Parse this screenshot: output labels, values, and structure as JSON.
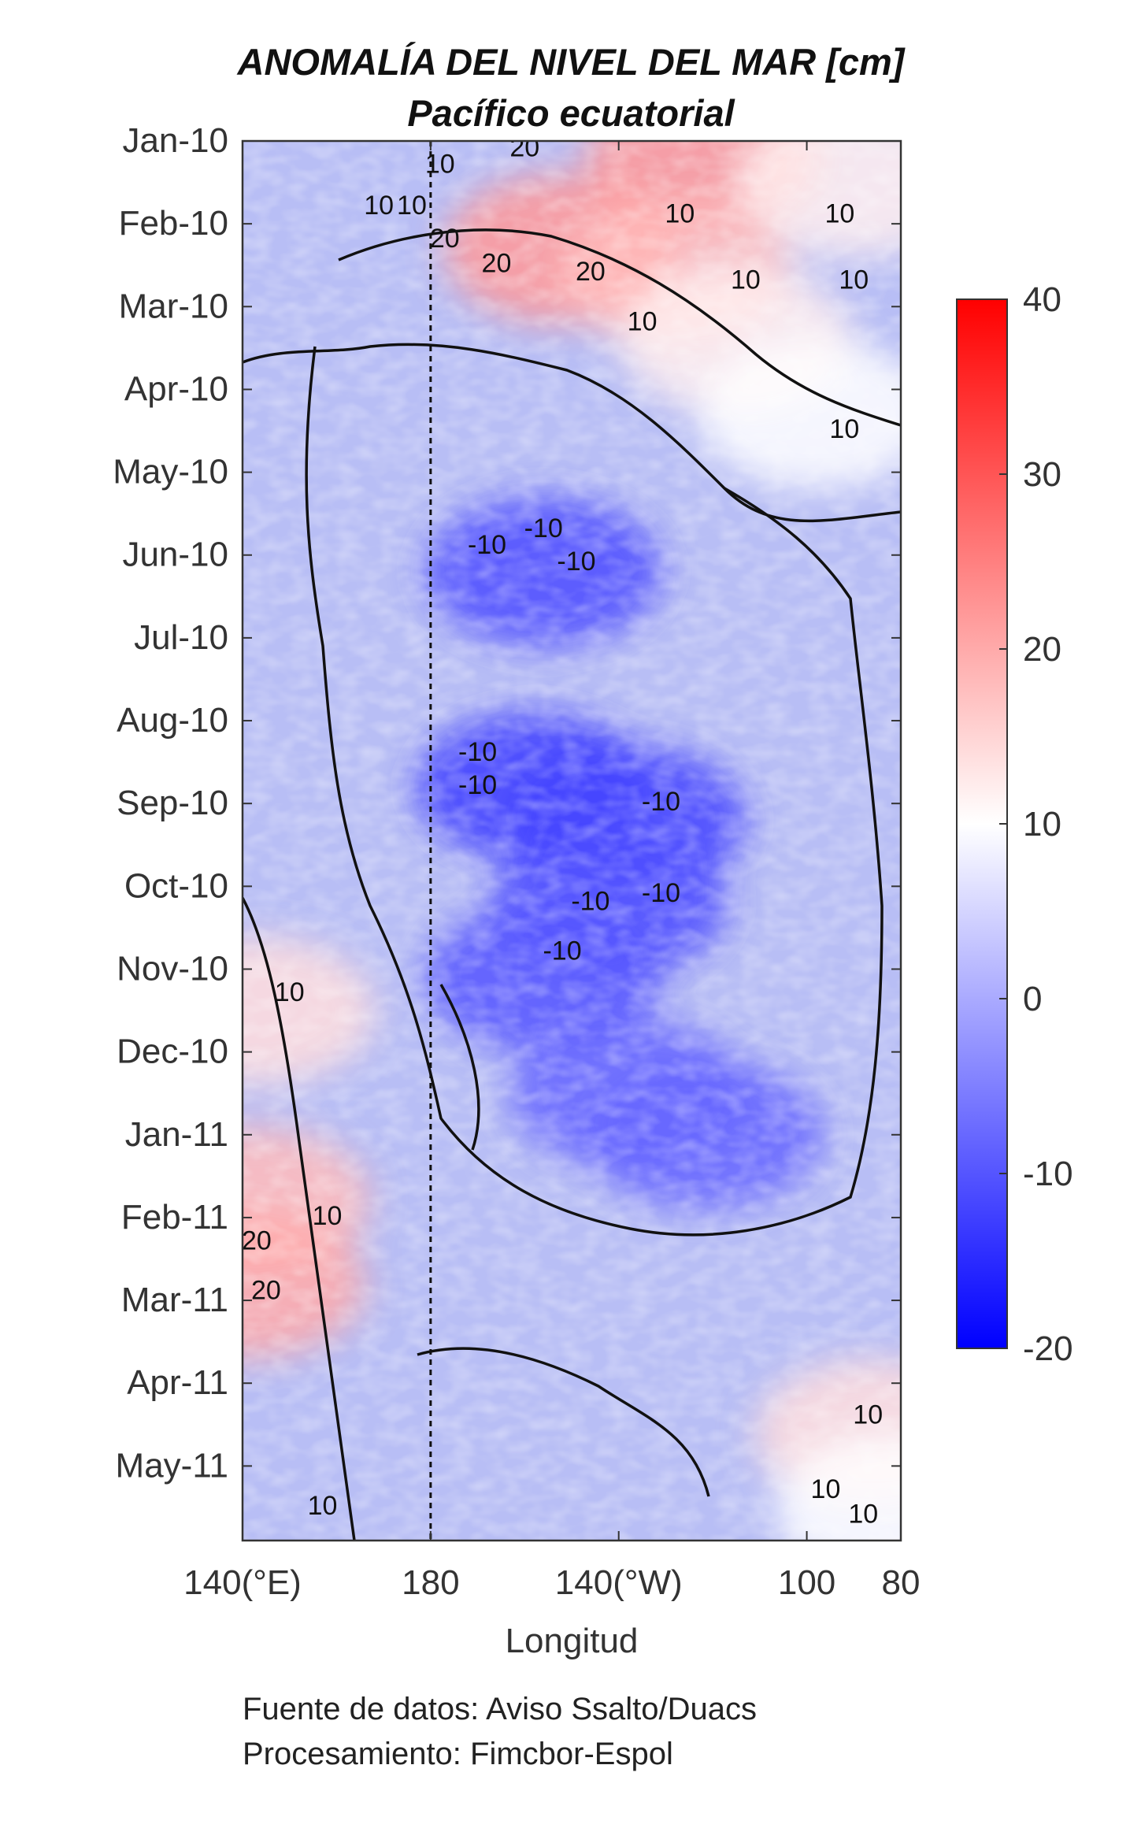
{
  "chart_data": {
    "type": "heatmap",
    "title": "ANOMALÍA DEL NIVEL DEL MAR [cm]",
    "subtitle": "Pacífico ecuatorial",
    "xlabel": "Longitud",
    "ylabel": "",
    "x_ticks": [
      {
        "value": 140,
        "label": "140(°E)"
      },
      {
        "value": 180,
        "label": "180"
      },
      {
        "value": 220,
        "label": "140(°W)"
      },
      {
        "value": 260,
        "label": "100"
      },
      {
        "value": 280,
        "label": "80"
      }
    ],
    "xlim": [
      140,
      280
    ],
    "y_ticks": [
      "Jan-10",
      "Feb-10",
      "Mar-10",
      "Apr-10",
      "May-10",
      "Jun-10",
      "Jul-10",
      "Aug-10",
      "Sep-10",
      "Oct-10",
      "Nov-10",
      "Dec-10",
      "Jan-11",
      "Feb-11",
      "Mar-11",
      "Apr-11",
      "May-11"
    ],
    "ylim_months": [
      0,
      16.9
    ],
    "dateline_lon": 180,
    "colorbar": {
      "min": -20,
      "max": 40,
      "ticks": [
        40,
        30,
        20,
        10,
        0,
        -10,
        -20
      ],
      "colors": [
        "#0000ff",
        "#ffffff",
        "#ff0000"
      ],
      "white_at": 10
    },
    "field_anomalies": [
      {
        "month": 0.2,
        "lon": 238,
        "value": 22
      },
      {
        "month": 0.5,
        "lon": 270,
        "value": 12
      },
      {
        "month": 1.3,
        "lon": 208,
        "value": 22
      },
      {
        "month": 1.6,
        "lon": 232,
        "value": 18
      },
      {
        "month": 2.4,
        "lon": 245,
        "value": 12
      },
      {
        "month": 3.3,
        "lon": 262,
        "value": 10
      },
      {
        "month": 5.2,
        "lon": 204,
        "value": -11
      },
      {
        "month": 7.8,
        "lon": 202,
        "value": -13
      },
      {
        "month": 8.2,
        "lon": 222,
        "value": -12
      },
      {
        "month": 9.2,
        "lon": 218,
        "value": -11
      },
      {
        "month": 10.1,
        "lon": 204,
        "value": -10
      },
      {
        "month": 11.5,
        "lon": 222,
        "value": -8
      },
      {
        "month": 12.0,
        "lon": 238,
        "value": -8
      },
      {
        "month": 10.5,
        "lon": 143,
        "value": 14
      },
      {
        "month": 12.8,
        "lon": 142,
        "value": 18
      },
      {
        "month": 13.8,
        "lon": 141,
        "value": 20
      },
      {
        "month": 15.6,
        "lon": 274,
        "value": 14
      },
      {
        "month": 16.5,
        "lon": 278,
        "value": 10
      }
    ],
    "contour_labels": [
      {
        "text": "20",
        "month": 0.1,
        "lon": 200
      },
      {
        "text": "10",
        "month": 0.3,
        "lon": 182
      },
      {
        "text": "10",
        "month": 0.8,
        "lon": 169
      },
      {
        "text": "10",
        "month": 0.8,
        "lon": 176
      },
      {
        "text": "20",
        "month": 1.2,
        "lon": 183
      },
      {
        "text": "20",
        "month": 1.5,
        "lon": 194
      },
      {
        "text": "20",
        "month": 1.6,
        "lon": 214
      },
      {
        "text": "10",
        "month": 0.9,
        "lon": 233
      },
      {
        "text": "10",
        "month": 0.9,
        "lon": 267
      },
      {
        "text": "10",
        "month": 1.7,
        "lon": 247
      },
      {
        "text": "10",
        "month": 1.7,
        "lon": 270
      },
      {
        "text": "10",
        "month": 2.2,
        "lon": 225
      },
      {
        "text": "10",
        "month": 3.5,
        "lon": 268
      },
      {
        "text": "-10",
        "month": 4.9,
        "lon": 192
      },
      {
        "text": "-10",
        "month": 4.7,
        "lon": 204
      },
      {
        "text": "-10",
        "month": 5.1,
        "lon": 211
      },
      {
        "text": "-10",
        "month": 7.4,
        "lon": 190
      },
      {
        "text": "-10",
        "month": 7.8,
        "lon": 190
      },
      {
        "text": "-10",
        "month": 8.0,
        "lon": 229
      },
      {
        "text": "-10",
        "month": 9.2,
        "lon": 214
      },
      {
        "text": "-10",
        "month": 9.1,
        "lon": 229
      },
      {
        "text": "-10",
        "month": 9.8,
        "lon": 208
      },
      {
        "text": "10",
        "month": 10.3,
        "lon": 150
      },
      {
        "text": "10",
        "month": 13.0,
        "lon": 158
      },
      {
        "text": "20",
        "month": 13.3,
        "lon": 143
      },
      {
        "text": "20",
        "month": 13.9,
        "lon": 145
      },
      {
        "text": "10",
        "month": 16.5,
        "lon": 157
      },
      {
        "text": "10",
        "month": 16.3,
        "lon": 264
      },
      {
        "text": "10",
        "month": 16.6,
        "lon": 272
      },
      {
        "text": "10",
        "month": 15.4,
        "lon": 273
      }
    ]
  },
  "footer": {
    "line1": "Fuente de datos: Aviso Ssalto/Duacs",
    "line2": "Procesamiento: Fimcbor-Espol"
  }
}
